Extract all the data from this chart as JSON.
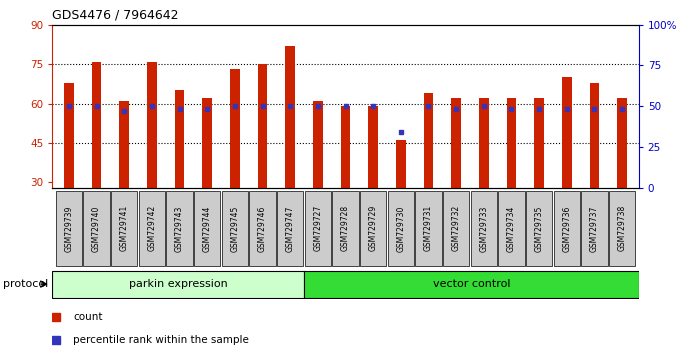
{
  "title": "GDS4476 / 7964642",
  "samples": [
    "GSM729739",
    "GSM729740",
    "GSM729741",
    "GSM729742",
    "GSM729743",
    "GSM729744",
    "GSM729745",
    "GSM729746",
    "GSM729747",
    "GSM729727",
    "GSM729728",
    "GSM729729",
    "GSM729730",
    "GSM729731",
    "GSM729732",
    "GSM729733",
    "GSM729734",
    "GSM729735",
    "GSM729736",
    "GSM729737",
    "GSM729738"
  ],
  "red_values": [
    68,
    76,
    61,
    76,
    65,
    62,
    73,
    75,
    82,
    61,
    59,
    59,
    46,
    64,
    62,
    62,
    62,
    62,
    70,
    68,
    62
  ],
  "blue_values": [
    59,
    59,
    57,
    59,
    58,
    58,
    59,
    59,
    59,
    59,
    59,
    59,
    49,
    59,
    58,
    59,
    58,
    58,
    58,
    58,
    58
  ],
  "ylim_left": [
    28,
    90
  ],
  "ylim_right": [
    0,
    100
  ],
  "yticks_left": [
    30,
    45,
    60,
    75,
    90
  ],
  "yticks_right": [
    0,
    25,
    50,
    75,
    100
  ],
  "ytick_labels_right": [
    "0",
    "25",
    "50",
    "75",
    "100%"
  ],
  "grid_values": [
    45,
    60,
    75
  ],
  "bar_color": "#cc2200",
  "blue_color": "#3333bb",
  "group1_label": "parkin expression",
  "group2_label": "vector control",
  "group1_count": 9,
  "group2_count": 12,
  "protocol_label": "protocol",
  "group1_bg": "#ccffcc",
  "group2_bg": "#33dd33",
  "legend_count": "count",
  "legend_pct": "percentile rank within the sample",
  "bar_width": 0.35,
  "xlabel_color": "#cc2200",
  "right_axis_color": "#0000cc",
  "tick_bg_color": "#cccccc"
}
